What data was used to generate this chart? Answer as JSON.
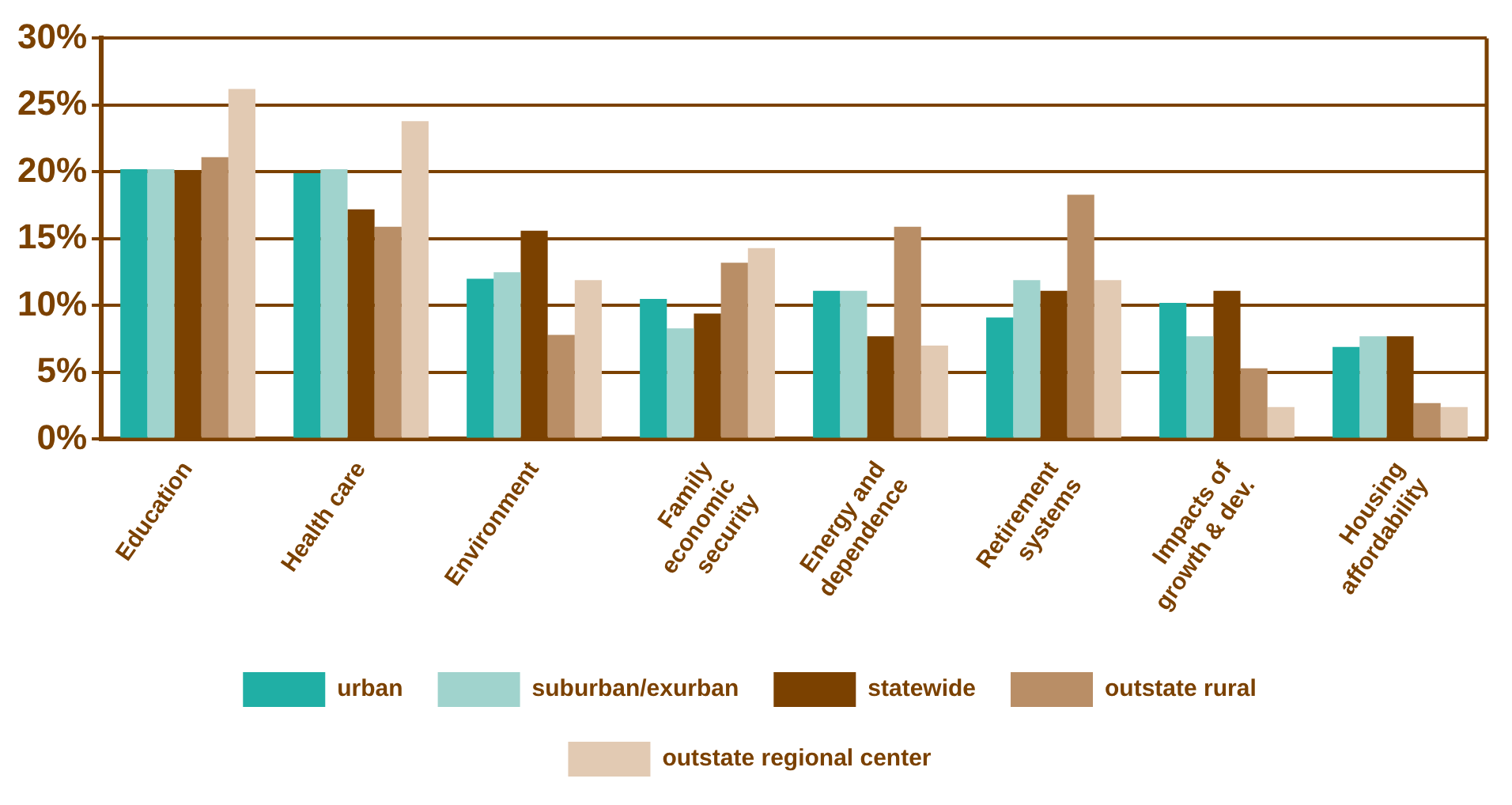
{
  "chart_data": {
    "type": "bar",
    "categories": [
      "Education",
      "Health care",
      "Environment",
      "Family\neconomic\nsecurity",
      "Energy and\ndependence",
      "Retirement\nsystems",
      "Impacts of\ngrowth & dev.",
      "Housing\naffordability"
    ],
    "series": [
      {
        "name": "urban",
        "color": "#20afa5",
        "values": [
          20.2,
          19.9,
          12.0,
          10.5,
          11.1,
          9.1,
          10.2,
          6.9
        ]
      },
      {
        "name": "suburban/exurban",
        "color": "#a0d3cd",
        "values": [
          20.2,
          20.2,
          12.5,
          8.3,
          11.1,
          11.9,
          7.7,
          7.7
        ]
      },
      {
        "name": "statewide",
        "color": "#7b4100",
        "values": [
          20.0,
          17.2,
          15.6,
          9.4,
          7.7,
          11.1,
          11.1,
          7.7
        ]
      },
      {
        "name": "outstate rural",
        "color": "#b98e66",
        "values": [
          21.1,
          15.9,
          7.8,
          13.2,
          15.9,
          18.3,
          5.3,
          2.7
        ]
      },
      {
        "name": "outstate regional center",
        "color": "#e2cab3",
        "values": [
          26.2,
          23.8,
          11.9,
          14.3,
          7.0,
          11.9,
          2.4,
          2.4
        ]
      }
    ],
    "ylim": [
      0,
      30
    ],
    "yticks": [
      {
        "value": 0,
        "label": "0%"
      },
      {
        "value": 5,
        "label": "5%"
      },
      {
        "value": 10,
        "label": "10%"
      },
      {
        "value": 15,
        "label": "15%"
      },
      {
        "value": 20,
        "label": "20%"
      },
      {
        "value": 25,
        "label": "25%"
      },
      {
        "value": 30,
        "label": "30%"
      }
    ],
    "grid": "y",
    "legend": "bottom"
  }
}
